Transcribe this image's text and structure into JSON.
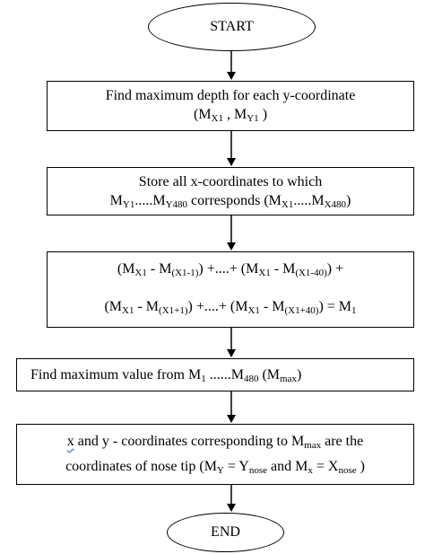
{
  "flowchart": {
    "start": "START",
    "end": "END",
    "step1": {
      "line1": "Find maximum depth for each y-coordinate",
      "line2": {
        "open": "(M",
        "s1": "X1",
        "mid": " , M",
        "s2": "Y1",
        "close": " )"
      }
    },
    "step2": {
      "line1": "Store all x-coordinates to which",
      "line2": {
        "a": "M",
        "s1": "Y1",
        "b": ".....M",
        "s2": "Y480",
        "c": " corresponds (M",
        "s3": "X1",
        "d": ".....M",
        "s4": "X480",
        "e": ")"
      }
    },
    "step3": {
      "line1": {
        "a": "(M",
        "s1": "X1",
        "b": " - M",
        "s2": "(X1-1)",
        "c": ") +....+ (M",
        "s3": "X1",
        "d": " - M",
        "s4": "(X1-40)",
        "e": ") +"
      },
      "line2": {
        "a": "(M",
        "s1": "X1",
        "b": " - M",
        "s2": "(X1+1)",
        "c": ") +....+ (M",
        "s3": "X1",
        "d": " - M",
        "s4": "(X1+40)",
        "e": ") = M",
        "s5": "1"
      }
    },
    "step4": {
      "a": "Find maximum value from M",
      "s1": "1",
      "b": " ......M",
      "s2": "480",
      "c": " (M",
      "s3": "max",
      "d": ")"
    },
    "step5": {
      "line1": {
        "a": "x",
        "b": " and y - coordinates corresponding to M",
        "s1": "max",
        "c": " are the"
      },
      "line2": {
        "a": "coordinates of nose tip (M",
        "s1": "Y",
        "b": " = Y",
        "s2": "nose",
        "c": " and M",
        "s3": "x",
        "d": " = X",
        "s4": "nose",
        "e": " )"
      }
    }
  }
}
